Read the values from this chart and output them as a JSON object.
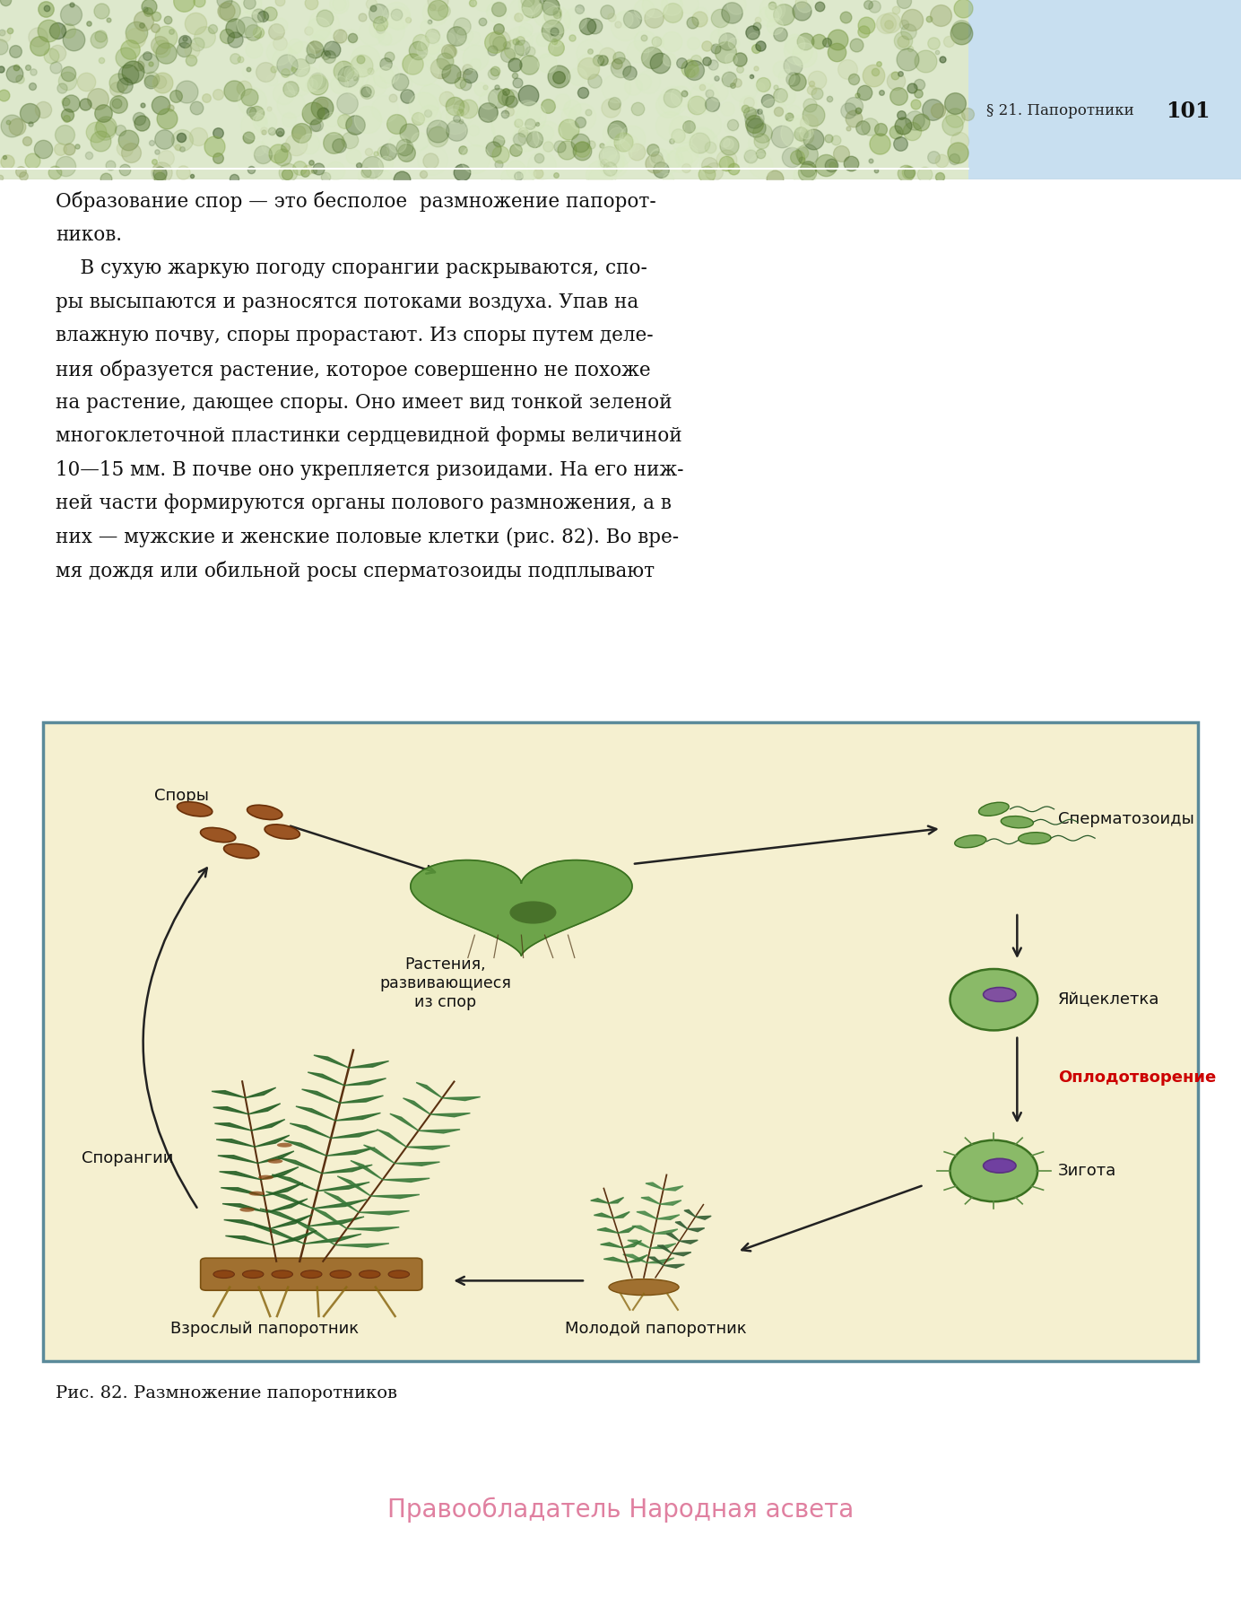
{
  "page_bg": "#ffffff",
  "header_text": "§ 21. Папоротники",
  "header_page_num": "101",
  "fern_bg_color": "#dde8cc",
  "sky_bg_color": "#c8dff0",
  "diagram_border_color": "#5a8a9a",
  "diagram_bg": "#f5f0d0",
  "label_spory": "Споры",
  "label_sporangii": "Спорангии",
  "label_vzroslyi": "Взрослый папоротник",
  "label_molodoi": "Молодой папоротник",
  "label_rasteniya": "Растения,\nразвивающиеся\nиз спор",
  "label_spermatozoidyi": "Сперматозоиды",
  "label_yaicekletka": "Яйцеклетка",
  "label_oplodotvorenie": "Оплодотворение",
  "label_zigota": "Зигота",
  "caption": "Рис. 82. Размножение папоротников",
  "copyright": "Правообладатель Народная асвета",
  "copyright_color": "#e080a0",
  "oplodotvorenie_color": "#cc0000",
  "text_line1a": "Образование спор — это бесполое  размножение папорот-",
  "text_line1b": "ников.",
  "text_lines": [
    "    В сухую жаркую погоду спорангии раскрываются, спо-",
    "ры высыпаются и разносятся потоками воздуха. Упав на",
    "влажную почву, споры прорастают. Из споры путем деле-",
    "ния образуется растение, которое совершенно не похоже",
    "на растение, дающее споры. Оно имеет вид тонкой зеленой",
    "многоклеточной пластинки сердцевидной формы величиной",
    "10—15 мм. В почве оно укрепляется ризоидами. На его ниж-",
    "ней части формируются органы полового размножения, а в",
    "них — мужские и женские половые клетки (рис. 82). Во вре-",
    "мя дождя или обильной росы сперматозоиды подплывают"
  ]
}
